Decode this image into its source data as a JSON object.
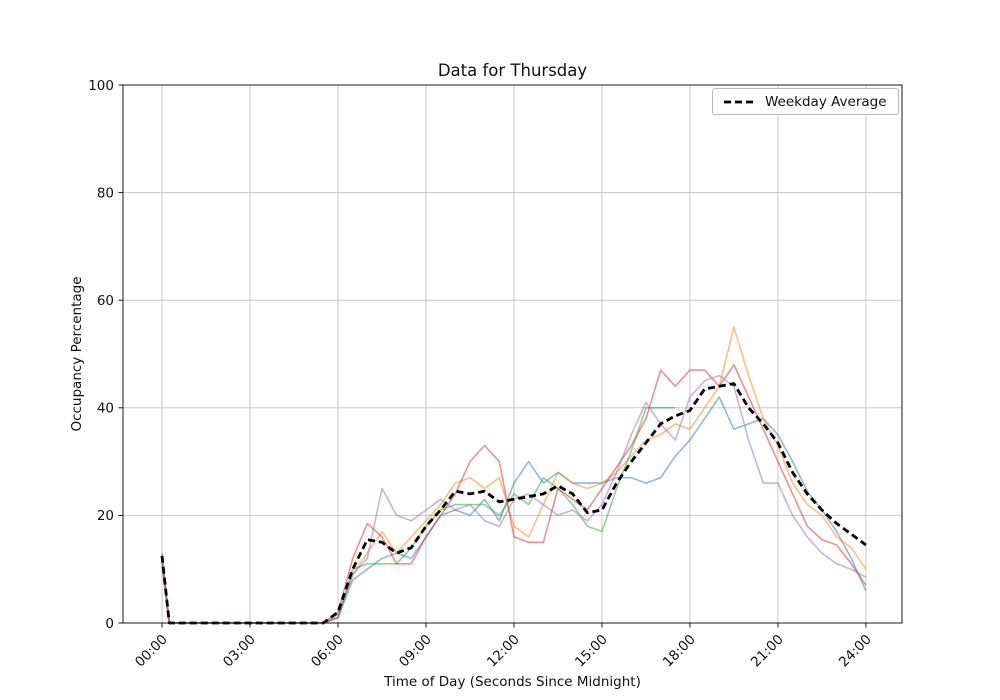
{
  "title": "Data for Thursday",
  "legend": {
    "label": "Weekday Average"
  },
  "chart_data": {
    "type": "line",
    "title": "Data for Thursday",
    "xlabel": "Time of Day (Seconds Since Midnight)",
    "ylabel": "Occupancy Percentage",
    "ylim": [
      0,
      100
    ],
    "xlim_hours": [
      -1.33,
      25.23
    ],
    "grid": true,
    "grid_color": "#c8c8c8",
    "spine_color": "#1a1a1a",
    "legend_position": "upper right",
    "yticks": [
      0,
      20,
      40,
      60,
      80,
      100
    ],
    "xticks": [
      {
        "hour": 0,
        "label": "00:00"
      },
      {
        "hour": 3,
        "label": "03:00"
      },
      {
        "hour": 6,
        "label": "06:00"
      },
      {
        "hour": 9,
        "label": "09:00"
      },
      {
        "hour": 12,
        "label": "12:00"
      },
      {
        "hour": 15,
        "label": "15:00"
      },
      {
        "hour": 18,
        "label": "18:00"
      },
      {
        "hour": 21,
        "label": "21:00"
      },
      {
        "hour": 24,
        "label": "24:00"
      }
    ],
    "x_hours": [
      0,
      0.25,
      0.5,
      1,
      1.5,
      2,
      2.5,
      3,
      3.5,
      4,
      4.5,
      5,
      5.5,
      6,
      6.5,
      7,
      7.5,
      8,
      8.5,
      9,
      9.5,
      10,
      10.5,
      11,
      11.5,
      12,
      12.5,
      13,
      13.5,
      14,
      14.5,
      15,
      15.5,
      16,
      16.5,
      17,
      17.5,
      18,
      18.5,
      19,
      19.5,
      20,
      20.5,
      21,
      21.5,
      22,
      22.5,
      23,
      23.5,
      24
    ],
    "series": [
      {
        "id": "day-blue",
        "color": "#1f77b4",
        "alpha": 0.5,
        "width": 1.6,
        "dash": null,
        "in_legend": false,
        "values": [
          11,
          0,
          0,
          0,
          0,
          0,
          0,
          0,
          0,
          0,
          0,
          0,
          0,
          1,
          8,
          10,
          12,
          13,
          12,
          16,
          20,
          21,
          20,
          23,
          19,
          26,
          30,
          26,
          28,
          26,
          26,
          26,
          27,
          27,
          26,
          27,
          31,
          34,
          38,
          42,
          36,
          37,
          38,
          35,
          30,
          24.5,
          21,
          17,
          12,
          6
        ]
      },
      {
        "id": "day-orange",
        "color": "#ff7f0e",
        "alpha": 0.5,
        "width": 1.6,
        "dash": null,
        "in_legend": false,
        "values": [
          12,
          0,
          0,
          0,
          0,
          0,
          0,
          0,
          0,
          0,
          0,
          0,
          0,
          1.5,
          9,
          13,
          17,
          13,
          16,
          19,
          22,
          26,
          27,
          25,
          27,
          18,
          16,
          22,
          28,
          26,
          25,
          26,
          28,
          31,
          34,
          35,
          37,
          36,
          40,
          44,
          55,
          46,
          38,
          33,
          26,
          22,
          20,
          16,
          14,
          10
        ]
      },
      {
        "id": "day-green",
        "color": "#2ca02c",
        "alpha": 0.5,
        "width": 1.6,
        "dash": null,
        "in_legend": false,
        "values": [
          13,
          0,
          0,
          0,
          0,
          0,
          0,
          0,
          0,
          0,
          0,
          0,
          0,
          1,
          10,
          11,
          11,
          11,
          14,
          18,
          21,
          22,
          22,
          22,
          20,
          24,
          22,
          27,
          25,
          22,
          18,
          17,
          25,
          32,
          40,
          40,
          40,
          null,
          null,
          null,
          null,
          null,
          null,
          null,
          null,
          null,
          null,
          null,
          null,
          null
        ]
      },
      {
        "id": "day-red",
        "color": "#d62728",
        "alpha": 0.5,
        "width": 1.6,
        "dash": null,
        "in_legend": false,
        "values": [
          12,
          0,
          0,
          0,
          0,
          0,
          0,
          0,
          0,
          0,
          0,
          0,
          0,
          2,
          12,
          18.5,
          16,
          11,
          11,
          16,
          20,
          24,
          30,
          33,
          30,
          16,
          15,
          15,
          25,
          23,
          21,
          25,
          29,
          33,
          38,
          47,
          44,
          47,
          47,
          44,
          48,
          42,
          36,
          30,
          24,
          18,
          15.5,
          14.5,
          11,
          7
        ]
      },
      {
        "id": "day-purple",
        "color": "#9467bd",
        "alpha": 0.5,
        "width": 1.6,
        "dash": null,
        "in_legend": false,
        "values": [
          11,
          0,
          0,
          0,
          0,
          0,
          0,
          0,
          0,
          0,
          0,
          0,
          0,
          1,
          9,
          12,
          25,
          20,
          19,
          21,
          23,
          21,
          22,
          19,
          18,
          23,
          24,
          22,
          20,
          21,
          19,
          22,
          28,
          35,
          41,
          37,
          34,
          42,
          45,
          46,
          44,
          34,
          26,
          26,
          20,
          16,
          13,
          11,
          10,
          8.5
        ]
      },
      {
        "id": "weekday-average",
        "name": "Weekday Average",
        "color": "#000000",
        "alpha": 1,
        "width": 2.8,
        "dash": [
          7,
          4
        ],
        "in_legend": true,
        "values": [
          12.5,
          0,
          0,
          0,
          0,
          0,
          0,
          0,
          0,
          0,
          0,
          0,
          0,
          2,
          10,
          15.5,
          15,
          13,
          14,
          18,
          21,
          24.5,
          24,
          24.5,
          22.5,
          23,
          23.5,
          24,
          25.5,
          24,
          20.5,
          21,
          26,
          30,
          33.5,
          37,
          38.5,
          39.5,
          43.5,
          44,
          44.5,
          40,
          37,
          33.5,
          28,
          24,
          21,
          18.5,
          16.5,
          14.5
        ]
      }
    ]
  }
}
